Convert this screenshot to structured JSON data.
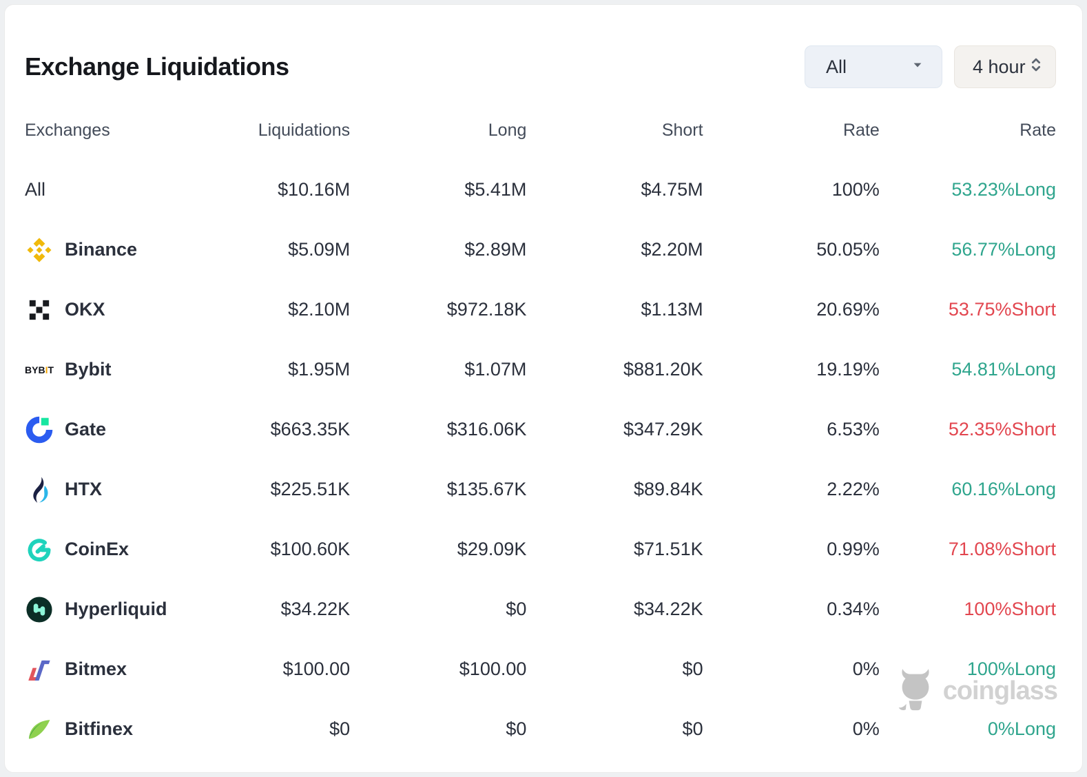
{
  "card": {
    "title": "Exchange Liquidations"
  },
  "filters": {
    "exchange_filter": {
      "value": "All"
    },
    "time_filter": {
      "value": "4 hour"
    }
  },
  "table": {
    "columns": [
      "Exchanges",
      "Liquidations",
      "Long",
      "Short",
      "Rate",
      "Rate"
    ],
    "rows": [
      {
        "exchange": "All",
        "icon": "",
        "liquidations": "$10.16M",
        "long": "$5.41M",
        "short": "$4.75M",
        "rate": "100%",
        "long_short_rate": "53.23%Long",
        "side": "long"
      },
      {
        "exchange": "Binance",
        "icon": "binance-icon",
        "liquidations": "$5.09M",
        "long": "$2.89M",
        "short": "$2.20M",
        "rate": "50.05%",
        "long_short_rate": "56.77%Long",
        "side": "long"
      },
      {
        "exchange": "OKX",
        "icon": "okx-icon",
        "liquidations": "$2.10M",
        "long": "$972.18K",
        "short": "$1.13M",
        "rate": "20.69%",
        "long_short_rate": "53.75%Short",
        "side": "short"
      },
      {
        "exchange": "Bybit",
        "icon": "bybit-icon",
        "liquidations": "$1.95M",
        "long": "$1.07M",
        "short": "$881.20K",
        "rate": "19.19%",
        "long_short_rate": "54.81%Long",
        "side": "long"
      },
      {
        "exchange": "Gate",
        "icon": "gate-icon",
        "liquidations": "$663.35K",
        "long": "$316.06K",
        "short": "$347.29K",
        "rate": "6.53%",
        "long_short_rate": "52.35%Short",
        "side": "short"
      },
      {
        "exchange": "HTX",
        "icon": "htx-icon",
        "liquidations": "$225.51K",
        "long": "$135.67K",
        "short": "$89.84K",
        "rate": "2.22%",
        "long_short_rate": "60.16%Long",
        "side": "long"
      },
      {
        "exchange": "CoinEx",
        "icon": "coinex-icon",
        "liquidations": "$100.60K",
        "long": "$29.09K",
        "short": "$71.51K",
        "rate": "0.99%",
        "long_short_rate": "71.08%Short",
        "side": "short"
      },
      {
        "exchange": "Hyperliquid",
        "icon": "hyperliquid-icon",
        "liquidations": "$34.22K",
        "long": "$0",
        "short": "$34.22K",
        "rate": "0.34%",
        "long_short_rate": "100%Short",
        "side": "short"
      },
      {
        "exchange": "Bitmex",
        "icon": "bitmex-icon",
        "liquidations": "$100.00",
        "long": "$100.00",
        "short": "$0",
        "rate": "0%",
        "long_short_rate": "100%Long",
        "side": "long"
      },
      {
        "exchange": "Bitfinex",
        "icon": "bitfinex-icon",
        "liquidations": "$0",
        "long": "$0",
        "short": "$0",
        "rate": "0%",
        "long_short_rate": "0%Long",
        "side": "long"
      }
    ]
  },
  "watermark": {
    "label": "coinglass"
  },
  "colors": {
    "long": "#2fa58d",
    "short": "#e2464f"
  }
}
